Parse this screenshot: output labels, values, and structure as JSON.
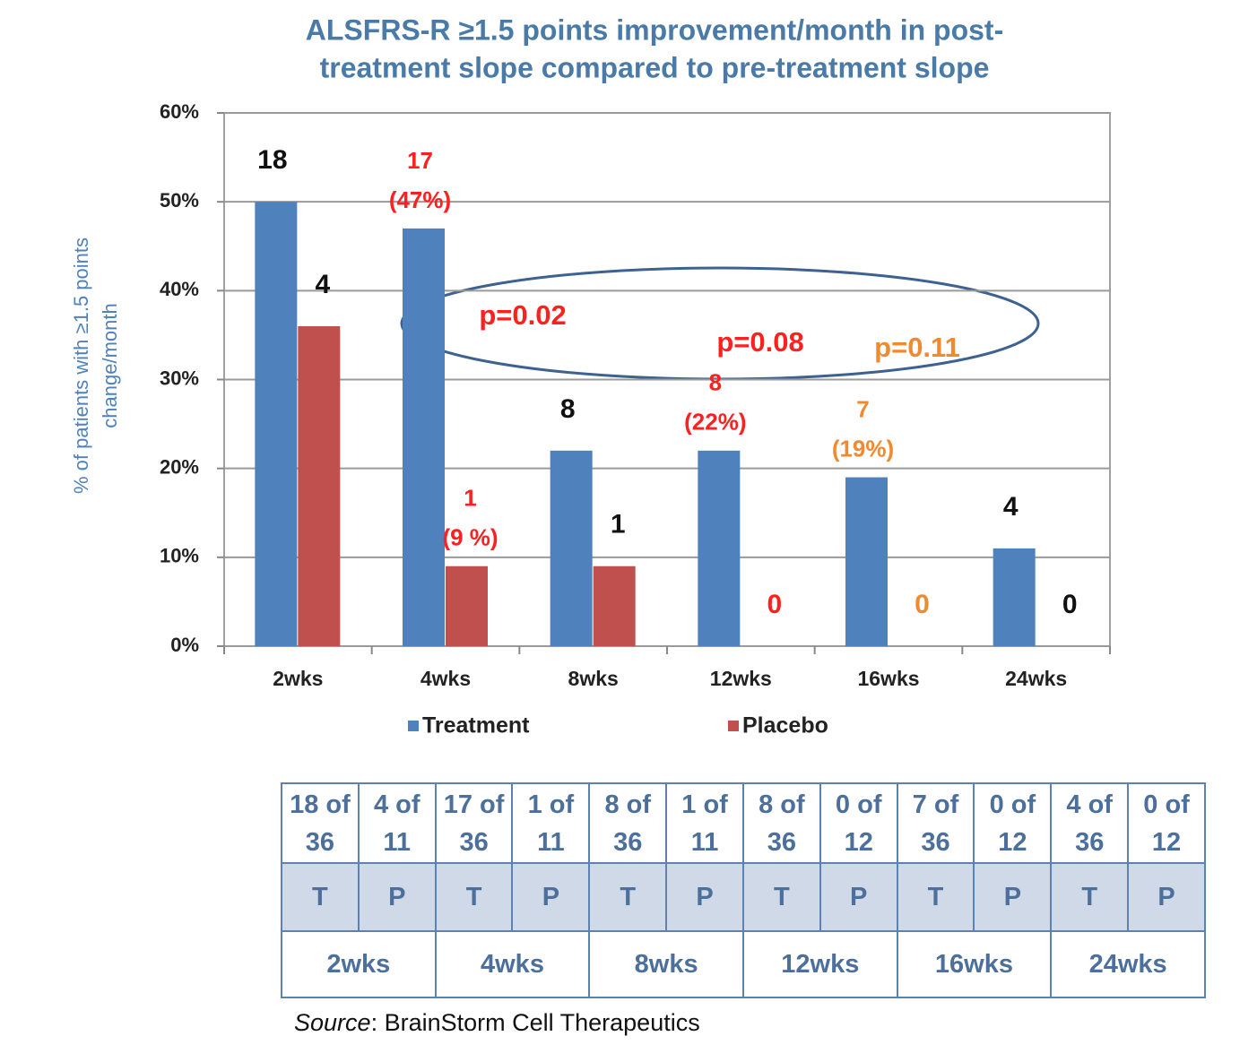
{
  "chart_data": {
    "type": "bar",
    "title": [
      "ALSFRS-R  ≥1.5 points  improvement/month  in post-",
      "treatment slope compared to pre-treatment slope"
    ],
    "y_label": [
      "% of patients with ≥1.5 points",
      "change/month"
    ],
    "categories": [
      "2wks",
      "4wks",
      "8wks",
      "12wks",
      "16wks",
      "24wks"
    ],
    "series": [
      {
        "name": "Treatment",
        "color": "#4f81bd",
        "values": [
          50,
          47,
          22,
          22,
          19,
          11
        ],
        "counts": [
          18,
          17,
          8,
          8,
          7,
          4
        ],
        "percent_labels": [
          null,
          "(47%)",
          null,
          "(22%)",
          "(19%)",
          null
        ],
        "label_colors": [
          "#111111",
          "#ff2020",
          "#111111",
          "#ff2020",
          "#f08a30",
          "#111111"
        ]
      },
      {
        "name": "Placebo",
        "color": "#c0504d",
        "values": [
          36,
          9,
          9,
          0,
          0,
          0
        ],
        "counts": [
          4,
          1,
          1,
          0,
          0,
          0
        ],
        "percent_labels": [
          null,
          "(9 %)",
          null,
          null,
          null,
          null
        ],
        "label_colors": [
          "#111111",
          "#ff2020",
          "#111111",
          "#ff2020",
          "#f08a30",
          "#111111"
        ]
      }
    ],
    "annotations": [
      {
        "text": "p=0.02",
        "color": "#ff2020"
      },
      {
        "text": "p=0.08",
        "color": "#ff2020"
      },
      {
        "text": "p=0.11",
        "color": "#f08a30"
      }
    ],
    "ylim": [
      0,
      60
    ],
    "yticks": [
      {
        "value": 0,
        "label": "0%"
      },
      {
        "value": 10,
        "label": "10%"
      },
      {
        "value": 20,
        "label": "20%"
      },
      {
        "value": 30,
        "label": "30%"
      },
      {
        "value": 40,
        "label": "40%"
      },
      {
        "value": 50,
        "label": "50%"
      },
      {
        "value": 60,
        "label": "60%"
      }
    ],
    "grid": true
  },
  "table": {
    "counts": [
      "18 of 36",
      "4 of 11",
      "17 of 36",
      "1 of 11",
      "8 of 36",
      "1 of 11",
      "8 of 36",
      "0 of 12",
      "7 of 36",
      "0 of 12",
      "4 of 36",
      "0 of 12"
    ],
    "arms": [
      "T",
      "P",
      "T",
      "P",
      "T",
      "P",
      "T",
      "P",
      "T",
      "P",
      "T",
      "P"
    ],
    "timepoints": [
      "2wks",
      "4wks",
      "8wks",
      "12wks",
      "16wks",
      "24wks"
    ]
  },
  "source": {
    "label": "Source",
    "text": ": BrainStorm Cell Therapeutics"
  }
}
